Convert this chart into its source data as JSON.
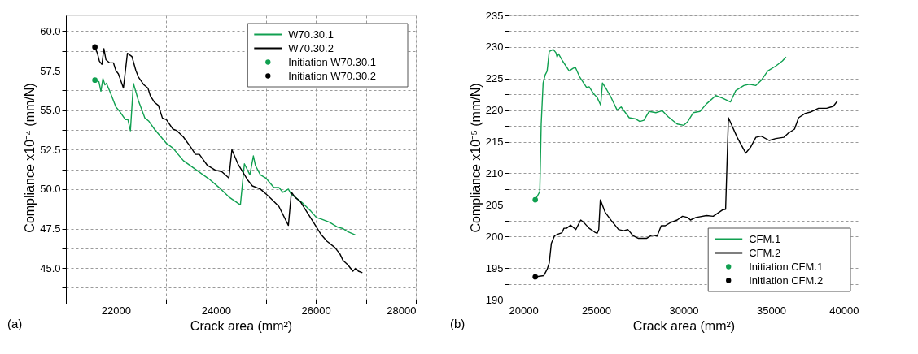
{
  "chart_data": [
    {
      "type": "line",
      "xlabel": "Crack area (mm²)",
      "ylabel": "Compliance x10⁻⁴ (mm/N)",
      "xlim": [
        21000,
        28000
      ],
      "xticks": [
        {
          "value": 21000,
          "label": null
        },
        22000,
        {
          "value": 23000,
          "label": null
        },
        24000,
        {
          "value": 25000,
          "label": null
        },
        26000,
        {
          "value": 27000,
          "label": null
        },
        28000
      ],
      "ylim": [
        43,
        61
      ],
      "yticks": [
        {
          "value": 43.75,
          "label": null
        },
        {
          "value": 45,
          "label": "45.0"
        },
        {
          "value": 46.25,
          "label": null
        },
        {
          "value": 47.5,
          "label": "47.5"
        },
        {
          "value": 48.75,
          "label": null
        },
        {
          "value": 50,
          "label": "50.0"
        },
        {
          "value": 51.25,
          "label": null
        },
        {
          "value": 52.5,
          "label": "52.5"
        },
        {
          "value": 53.75,
          "label": null
        },
        {
          "value": 55,
          "label": "55.0"
        },
        {
          "value": 56.25,
          "label": null
        },
        {
          "value": 57.5,
          "label": "57.5"
        },
        {
          "value": 58.75,
          "label": null
        },
        {
          "value": 60,
          "label": "60.0"
        }
      ],
      "grid": true,
      "legend": "top right",
      "annotations": [
        "(a)"
      ],
      "series": [
        {
          "name": "W70.30.1",
          "color": "#10a050",
          "x": [
            21580,
            21660,
            21700,
            21740,
            21780,
            21810,
            21890,
            22000,
            22080,
            22190,
            22240,
            22290,
            22350,
            22450,
            22580,
            22660,
            22770,
            23010,
            23140,
            23350,
            23570,
            23880,
            24100,
            24260,
            24490,
            24570,
            24680,
            24750,
            24790,
            24890,
            25000,
            25160,
            25260,
            25340,
            25450,
            25500,
            25580,
            25740,
            25900,
            26010,
            26110,
            26270,
            26430,
            26540,
            26640,
            26790
          ],
          "values": [
            56.9,
            56.8,
            56.2,
            57.0,
            56.6,
            56.7,
            56.1,
            55.2,
            54.9,
            54.4,
            54.4,
            53.7,
            56.7,
            55.6,
            54.5,
            54.3,
            53.8,
            52.9,
            52.6,
            51.8,
            51.3,
            50.6,
            50.0,
            49.5,
            49.0,
            51.6,
            50.9,
            52.1,
            51.5,
            50.9,
            50.7,
            50.1,
            50.1,
            49.8,
            50.0,
            49.7,
            49.5,
            49.1,
            48.6,
            48.2,
            48.1,
            47.9,
            47.6,
            47.5,
            47.3,
            47.1
          ]
        },
        {
          "name": "W70.30.2",
          "color": "#000000",
          "x": [
            21580,
            21630,
            21670,
            21720,
            21760,
            21800,
            21870,
            21950,
            22000,
            22050,
            22150,
            22230,
            22320,
            22400,
            22450,
            22560,
            22640,
            22690,
            22770,
            22850,
            22930,
            23010,
            23140,
            23220,
            23350,
            23510,
            23590,
            23670,
            23830,
            23990,
            24120,
            24260,
            24320,
            24440,
            24630,
            24730,
            24890,
            25000,
            25100,
            25260,
            25450,
            25510,
            25580,
            25690,
            25790,
            25950,
            26110,
            26220,
            26380,
            26480,
            26540,
            26640,
            26740,
            26800,
            26850,
            26930
          ],
          "values": [
            59.0,
            58.6,
            58.1,
            57.9,
            58.9,
            58.2,
            58.0,
            58.0,
            57.5,
            57.3,
            56.4,
            58.6,
            58.4,
            57.5,
            57.1,
            56.6,
            56.4,
            55.9,
            55.5,
            55.3,
            54.5,
            54.4,
            53.8,
            53.7,
            53.3,
            52.6,
            52.2,
            52.2,
            51.5,
            51.2,
            51.1,
            50.7,
            52.5,
            51.6,
            50.6,
            50.2,
            50.0,
            49.7,
            49.4,
            48.9,
            47.7,
            49.8,
            49.5,
            49.2,
            48.7,
            47.9,
            47.1,
            46.7,
            46.3,
            45.9,
            45.5,
            45.2,
            44.8,
            45.0,
            44.8,
            44.7
          ]
        },
        {
          "name": "Initiation W70.30.1",
          "color": "#10a050",
          "type": "scatter",
          "marker": "circle",
          "x": [
            21580
          ],
          "values": [
            56.9
          ]
        },
        {
          "name": "Initiation W70.30.2",
          "color": "#000000",
          "type": "scatter",
          "marker": "circle",
          "x": [
            21580
          ],
          "values": [
            59.0
          ]
        }
      ]
    },
    {
      "type": "line",
      "xlabel": "Crack area (mm²)",
      "ylabel": "Compliance x10⁻⁵ (mm/N)",
      "xlim": [
        20000,
        40000
      ],
      "xticks": [
        20000,
        {
          "value": 22500,
          "label": null
        },
        25000,
        {
          "value": 27500,
          "label": null
        },
        30000,
        {
          "value": 32500,
          "label": null
        },
        35000,
        {
          "value": 37500,
          "label": null
        },
        40000
      ],
      "ylim": [
        190,
        235
      ],
      "yticks": [
        190,
        {
          "value": 192.5,
          "label": null
        },
        195,
        {
          "value": 197.5,
          "label": null
        },
        200,
        {
          "value": 202.5,
          "label": null
        },
        205,
        {
          "value": 207.5,
          "label": null
        },
        210,
        {
          "value": 212.5,
          "label": null
        },
        215,
        {
          "value": 217.5,
          "label": null
        },
        220,
        {
          "value": 222.5,
          "label": null
        },
        225,
        {
          "value": 227.5,
          "label": null
        },
        230,
        {
          "value": 232.5,
          "label": null
        },
        235
      ],
      "grid": true,
      "legend": "bottom right",
      "annotations": [
        "(b)"
      ],
      "series": [
        {
          "name": "CFM.1",
          "color": "#10a050",
          "x": [
            21520,
            21780,
            21860,
            21970,
            22090,
            22200,
            22320,
            22550,
            22700,
            22770,
            22850,
            23080,
            23460,
            23660,
            23810,
            24070,
            24450,
            24600,
            24830,
            25060,
            25260,
            25360,
            25590,
            25820,
            26200,
            26430,
            26890,
            27270,
            27500,
            27730,
            28030,
            28410,
            28790,
            29100,
            29630,
            30010,
            30240,
            30550,
            30930,
            31310,
            31840,
            32220,
            32680,
            32980,
            33440,
            33750,
            34130,
            34430,
            34810,
            35270,
            35650,
            35850
          ],
          "values": [
            205.8,
            207.1,
            217.8,
            224.3,
            225.6,
            226.2,
            229.3,
            229.6,
            229.1,
            228.4,
            228.9,
            227.8,
            226.2,
            226.6,
            226.8,
            225.2,
            223.6,
            223.7,
            222.7,
            222.0,
            220.8,
            224.3,
            223.3,
            222.2,
            220.0,
            220.5,
            218.8,
            218.6,
            218.2,
            218.4,
            219.8,
            219.6,
            219.9,
            219.0,
            217.8,
            217.6,
            218.2,
            219.6,
            219.8,
            221.0,
            222.3,
            221.9,
            221.3,
            223.1,
            223.9,
            224.1,
            223.9,
            224.7,
            226.2,
            227.0,
            227.8,
            228.4
          ]
        },
        {
          "name": "CFM.2",
          "color": "#000000",
          "x": [
            21520,
            22010,
            22200,
            22320,
            22440,
            22620,
            22850,
            23050,
            23160,
            23310,
            23540,
            23840,
            24120,
            24300,
            24600,
            24910,
            25060,
            25150,
            25240,
            25520,
            25900,
            26280,
            26580,
            26810,
            27120,
            27420,
            27880,
            28180,
            28490,
            28720,
            28950,
            29250,
            29630,
            29940,
            30240,
            30390,
            30700,
            31310,
            31690,
            32220,
            32400,
            32560,
            33060,
            33550,
            33820,
            34130,
            34430,
            34890,
            35270,
            35730,
            35960,
            36340,
            36570,
            36950,
            37250,
            37710,
            38170,
            38550,
            38780
          ],
          "values": [
            193.6,
            193.8,
            194.8,
            195.8,
            198.9,
            200.1,
            200.4,
            200.6,
            201.3,
            201.3,
            201.8,
            201.1,
            202.6,
            202.2,
            201.3,
            200.7,
            200.5,
            201.1,
            205.8,
            203.8,
            202.4,
            201.1,
            200.9,
            201.1,
            200.1,
            199.7,
            199.7,
            200.2,
            200.1,
            201.7,
            201.7,
            202.2,
            202.6,
            203.2,
            203.0,
            202.6,
            203.0,
            203.3,
            203.2,
            204.2,
            204.3,
            218.8,
            215.7,
            213.2,
            214.1,
            215.7,
            215.9,
            215.2,
            215.5,
            215.7,
            216.3,
            217.0,
            218.8,
            219.5,
            219.7,
            220.3,
            220.3,
            220.6,
            221.4
          ]
        },
        {
          "name": "Initiation CFM.1",
          "color": "#10a050",
          "type": "scatter",
          "marker": "circle",
          "x": [
            21520
          ],
          "values": [
            205.8
          ]
        },
        {
          "name": "Initiation CFM.2",
          "color": "#000000",
          "type": "scatter",
          "marker": "circle",
          "x": [
            21520
          ],
          "values": [
            193.6
          ]
        }
      ]
    }
  ]
}
